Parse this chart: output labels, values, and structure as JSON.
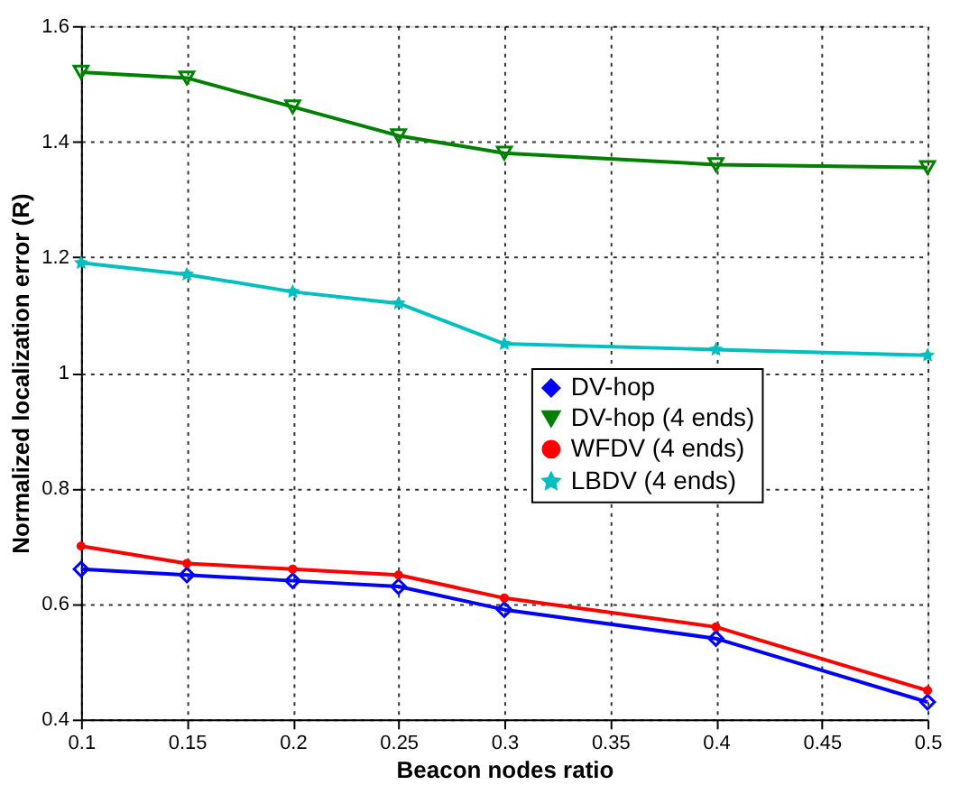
{
  "chart_data": {
    "type": "line",
    "xlabel": "Beacon nodes ratio",
    "ylabel": "Normalized localization error (R)",
    "x": [
      0.1,
      0.15,
      0.2,
      0.25,
      0.3,
      0.4,
      0.5
    ],
    "series": [
      {
        "name": "DV-hop",
        "color": "#0000ff",
        "marker": "diamond",
        "values": [
          0.66,
          0.65,
          0.64,
          0.63,
          0.59,
          0.54,
          0.43
        ]
      },
      {
        "name": "DV-hop (4 ends)",
        "color": "#008000",
        "marker": "triangle",
        "values": [
          1.52,
          1.51,
          1.46,
          1.41,
          1.38,
          1.36,
          1.355
        ]
      },
      {
        "name": "WFDV (4 ends)",
        "color": "#ff0000",
        "marker": "circle",
        "values": [
          0.7,
          0.67,
          0.66,
          0.65,
          0.61,
          0.56,
          0.45
        ]
      },
      {
        "name": "LBDV (4 ends)",
        "color": "#00bfbf",
        "marker": "star",
        "values": [
          1.19,
          1.17,
          1.14,
          1.12,
          1.05,
          1.04,
          1.03
        ]
      }
    ],
    "xlim": [
      0.1,
      0.5
    ],
    "xticks": [
      0.1,
      0.15,
      0.2,
      0.25,
      0.3,
      0.35,
      0.4,
      0.45,
      0.5
    ],
    "ylim": [
      0.4,
      1.6
    ],
    "yticks": [
      0.4,
      0.6,
      0.8,
      1,
      1.2,
      1.4,
      1.6
    ],
    "grid": true,
    "legend": "center",
    "line_style": "solid"
  }
}
